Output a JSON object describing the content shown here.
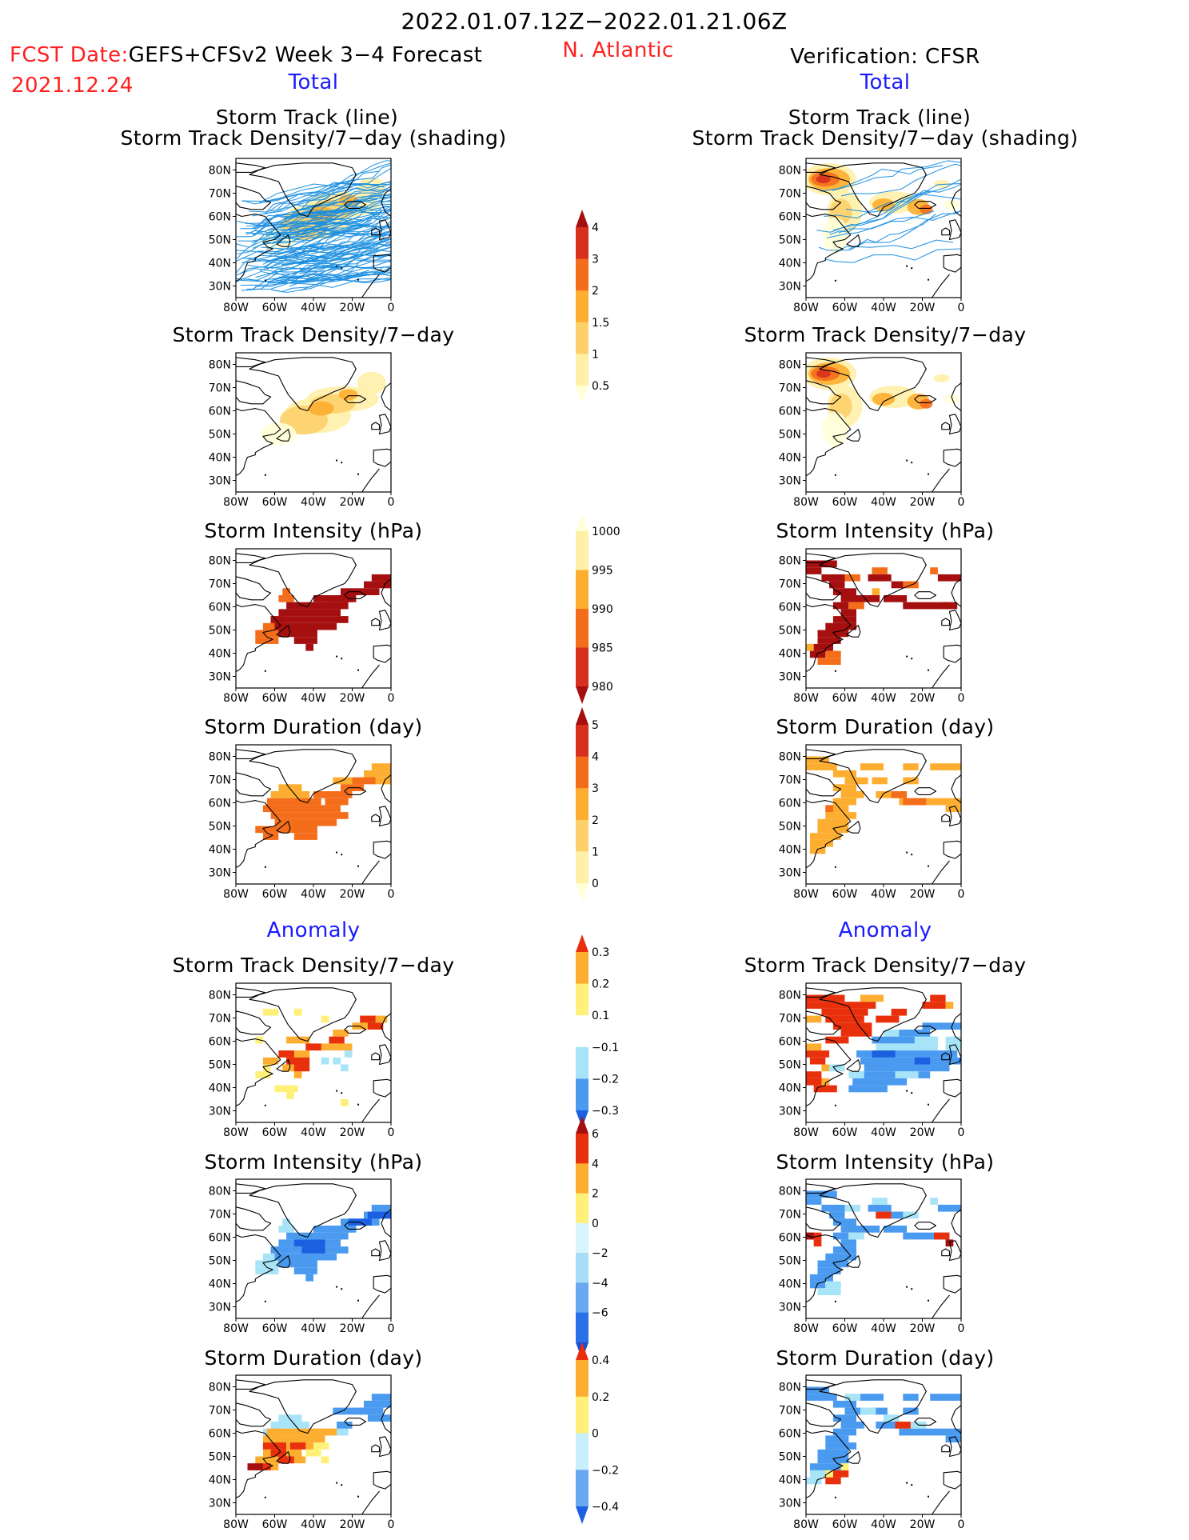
{
  "header": {
    "period": "2022.01.07.12Z−2022.01.21.06Z",
    "fcst_label": "FCST Date:",
    "fcst_model": "GEFS+CFSv2 Week 3−4 Forecast",
    "fcst_date": "2021.12.24",
    "region": "N. Atlantic",
    "verification": "Verification: CFSR",
    "left_section": "Total",
    "right_section": "Total"
  },
  "sections": {
    "anomaly_left": "Anomaly",
    "anomaly_right": "Anomaly"
  },
  "panel_titles": {
    "track_line": "Storm Track (line)",
    "track_shading": "Storm Track Density/7−day (shading)",
    "density": "Storm Track Density/7−day",
    "intensity": "Storm Intensity (hPa)",
    "duration": "Storm Duration (day)"
  },
  "map": {
    "lon_ticks": [
      "80W",
      "60W",
      "40W",
      "20W",
      "0"
    ],
    "lat_ticks": [
      "80N",
      "70N",
      "60N",
      "50N",
      "40N",
      "30N"
    ],
    "lon_range": [
      -80,
      0
    ],
    "lat_range": [
      25,
      85
    ]
  },
  "colorbars": [
    {
      "name": "density-total",
      "labels": [
        "4",
        "3",
        "2",
        "1.5",
        "1",
        "0.5"
      ],
      "colors": [
        "#a50f0f",
        "#d7301f",
        "#f46d1a",
        "#fdae30",
        "#fdd06a",
        "#fff0a8",
        "#ffffd8"
      ]
    },
    {
      "name": "intensity-total",
      "labels": [
        "1000",
        "995",
        "990",
        "985",
        "980"
      ],
      "colors": [
        "#ffffd8",
        "#fff0a8",
        "#fdae30",
        "#f46d1a",
        "#d7301f",
        "#a50f0f"
      ]
    },
    {
      "name": "duration-total",
      "labels": [
        "5",
        "4",
        "3",
        "2",
        "1",
        "0"
      ],
      "colors": [
        "#a50f0f",
        "#d7301f",
        "#f46d1a",
        "#fdae30",
        "#fdd06a",
        "#fff0a8",
        "#ffffd8"
      ]
    },
    {
      "name": "density-anomaly",
      "labels": [
        "0.3",
        "0.2",
        "0.1",
        "−0.1",
        "−0.2",
        "−0.3"
      ],
      "colors": [
        "#e8300c",
        "#fdae30",
        "#fff07a",
        "#ffffff",
        "#a8e4f8",
        "#4a9af0",
        "#1a60e0"
      ]
    },
    {
      "name": "intensity-anomaly",
      "labels": [
        "6",
        "4",
        "2",
        "0",
        "−2",
        "−4",
        "−6"
      ],
      "colors": [
        "#a50f0f",
        "#e8300c",
        "#fdae30",
        "#fff07a",
        "#d8f4fc",
        "#a8dcf8",
        "#6aa8f0",
        "#2a70e8",
        "#1a50d0"
      ]
    },
    {
      "name": "duration-anomaly",
      "labels": [
        "0.4",
        "0.2",
        "0",
        "−0.2",
        "−0.4"
      ],
      "colors": [
        "#e8300c",
        "#fdae30",
        "#fff07a",
        "#c8f0fc",
        "#6aa8f0",
        "#1a60e0"
      ]
    }
  ]
}
